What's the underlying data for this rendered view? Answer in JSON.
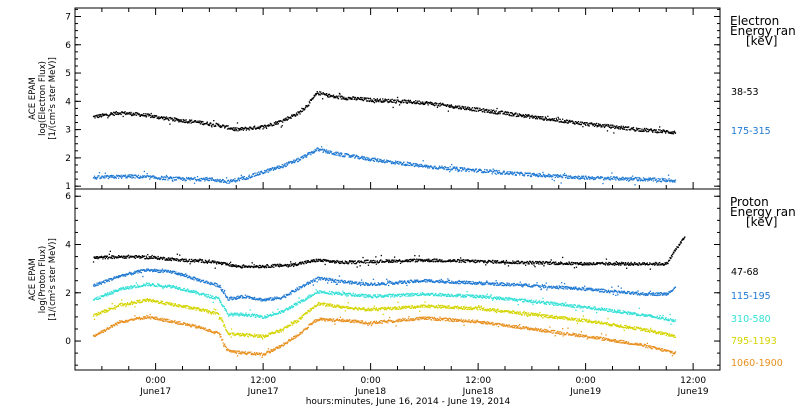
{
  "chart_data": {
    "type": "scatter",
    "xlabel": "hours:minutes, June 16, 2014 - June 19, 2014",
    "xlim": [
      -9,
      63
    ],
    "x_ticks": [
      {
        "x": 0,
        "time": "0:00",
        "date": "June17"
      },
      {
        "x": 12,
        "time": "12:00",
        "date": "June17"
      },
      {
        "x": 24,
        "time": "0:00",
        "date": "June18"
      },
      {
        "x": 36,
        "time": "12:00",
        "date": "June18"
      },
      {
        "x": 48,
        "time": "0:00",
        "date": "June19"
      },
      {
        "x": 60,
        "time": "12:00",
        "date": "June19"
      }
    ],
    "panels": [
      {
        "name": "electron",
        "ylabel_lines": [
          "ACE EPAM",
          "log(Electron Flux)",
          "[1/(cm²s ster MeV)]"
        ],
        "ylim": [
          0.9,
          7.3
        ],
        "yticks": [
          1,
          2,
          3,
          4,
          5,
          6,
          7
        ],
        "legend_title_lines": [
          "Electron",
          "Energy ran",
          "[keV]"
        ],
        "series": [
          {
            "name": "38-53",
            "color": "#000000",
            "x": [
              -7,
              -4,
              -1,
              2,
              5,
              7,
              9,
              12,
              14,
              16,
              17,
              18,
              20,
              24,
              30,
              36,
              42,
              48,
              54,
              58
            ],
            "y": [
              3.45,
              3.6,
              3.5,
              3.35,
              3.25,
              3.15,
              3.0,
              3.1,
              3.3,
              3.6,
              3.9,
              4.3,
              4.15,
              4.05,
              3.95,
              3.7,
              3.45,
              3.2,
              3.0,
              2.9
            ]
          },
          {
            "name": "175-315",
            "color": "#1E78D2",
            "x": [
              -7,
              -3,
              0,
              3,
              6,
              8,
              10,
              12,
              14,
              16,
              18,
              20,
              24,
              30,
              36,
              42,
              48,
              54,
              58
            ],
            "y": [
              1.3,
              1.35,
              1.3,
              1.25,
              1.25,
              1.15,
              1.3,
              1.5,
              1.7,
              1.95,
              2.3,
              2.15,
              1.95,
              1.7,
              1.55,
              1.4,
              1.3,
              1.25,
              1.2
            ]
          }
        ]
      },
      {
        "name": "proton",
        "ylabel_lines": [
          "ACE EPAM",
          "log(Proton Flux)",
          "[1/(cm²s ster MeV)]"
        ],
        "ylim": [
          -1.2,
          6.3
        ],
        "yticks": [
          0,
          2,
          4,
          6
        ],
        "legend_title_lines": [
          "Proton",
          "Energy ran",
          "[keV]"
        ],
        "series": [
          {
            "name": "47-68",
            "color": "#000000",
            "x": [
              -7,
              -3,
              0,
              3,
              6,
              9,
              12,
              15,
              18,
              21,
              24,
              30,
              36,
              42,
              48,
              54,
              57,
              58,
              59
            ],
            "y": [
              3.45,
              3.5,
              3.45,
              3.35,
              3.3,
              3.1,
              3.1,
              3.15,
              3.35,
              3.25,
              3.3,
              3.35,
              3.3,
              3.25,
              3.2,
              3.2,
              3.2,
              3.8,
              4.3
            ]
          },
          {
            "name": "115-195",
            "color": "#1E78D2",
            "x": [
              -7,
              -4,
              -1,
              2,
              5,
              7,
              8,
              10,
              12,
              14,
              16,
              18,
              21,
              24,
              30,
              36,
              42,
              48,
              54,
              57,
              58
            ],
            "y": [
              2.3,
              2.7,
              2.95,
              2.85,
              2.5,
              2.3,
              1.75,
              1.85,
              1.7,
              1.8,
              2.2,
              2.6,
              2.45,
              2.35,
              2.5,
              2.4,
              2.3,
              2.15,
              1.95,
              1.95,
              2.25
            ]
          },
          {
            "name": "310-580",
            "color": "#33E0D6",
            "x": [
              -7,
              -4,
              -1,
              2,
              5,
              7,
              8,
              10,
              12,
              14,
              16,
              18,
              21,
              24,
              30,
              36,
              42,
              48,
              54,
              58
            ],
            "y": [
              1.7,
              2.15,
              2.35,
              2.25,
              1.95,
              1.75,
              1.1,
              1.1,
              1.0,
              1.2,
              1.6,
              2.05,
              1.95,
              1.85,
              1.95,
              1.85,
              1.65,
              1.4,
              1.1,
              0.85
            ]
          },
          {
            "name": "795-1193",
            "color": "#D4D400",
            "x": [
              -7,
              -4,
              -1,
              2,
              5,
              7,
              8,
              10,
              12,
              14,
              16,
              18,
              21,
              24,
              30,
              36,
              42,
              48,
              54,
              58
            ],
            "y": [
              1.05,
              1.5,
              1.7,
              1.5,
              1.3,
              1.1,
              0.3,
              0.25,
              0.2,
              0.45,
              0.9,
              1.55,
              1.4,
              1.3,
              1.45,
              1.35,
              1.1,
              0.85,
              0.5,
              0.2
            ]
          },
          {
            "name": "1060-1900",
            "color": "#E8901E",
            "x": [
              -7,
              -4,
              -1,
              2,
              5,
              7,
              8,
              10,
              12,
              14,
              16,
              18,
              21,
              24,
              30,
              36,
              42,
              48,
              54,
              58
            ],
            "y": [
              0.2,
              0.8,
              1.0,
              0.8,
              0.55,
              0.3,
              -0.4,
              -0.5,
              -0.55,
              -0.2,
              0.3,
              0.9,
              0.85,
              0.75,
              0.95,
              0.8,
              0.5,
              0.2,
              -0.15,
              -0.5
            ]
          }
        ]
      }
    ]
  }
}
